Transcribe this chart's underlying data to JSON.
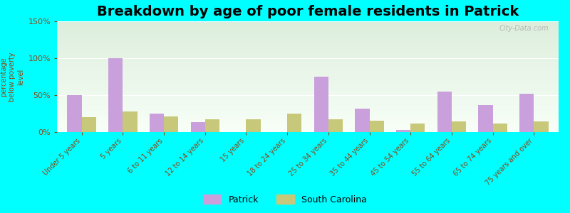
{
  "title": "Breakdown by age of poor female residents in Patrick",
  "ylabel": "percentage\nbelow poverty\nlevel",
  "categories": [
    "Under 5 years",
    "5 years",
    "6 to 11 years",
    "12 to 14 years",
    "15 years",
    "18 to 24 years",
    "25 to 34 years",
    "35 to 44 years",
    "45 to 54 years",
    "55 to 64 years",
    "65 to 74 years",
    "75 years and over"
  ],
  "patrick_values": [
    50,
    100,
    25,
    13,
    0,
    0,
    75,
    32,
    3,
    55,
    37,
    52
  ],
  "sc_values": [
    20,
    28,
    21,
    17,
    17,
    25,
    17,
    15,
    12,
    14,
    12,
    14
  ],
  "patrick_color": "#c9a0dc",
  "sc_color": "#c8c87a",
  "background_color": "#00ffff",
  "plot_bg_color_top": "#ddeedd",
  "plot_bg_color_bottom": "#f8fff8",
  "ylim": [
    0,
    150
  ],
  "yticks": [
    0,
    50,
    100,
    150
  ],
  "ytick_labels": [
    "0%",
    "50%",
    "100%",
    "150%"
  ],
  "legend_labels": [
    "Patrick",
    "South Carolina"
  ],
  "title_fontsize": 14,
  "label_fontsize": 8,
  "tick_color": "#8b4513",
  "watermark": "City-Data.com"
}
